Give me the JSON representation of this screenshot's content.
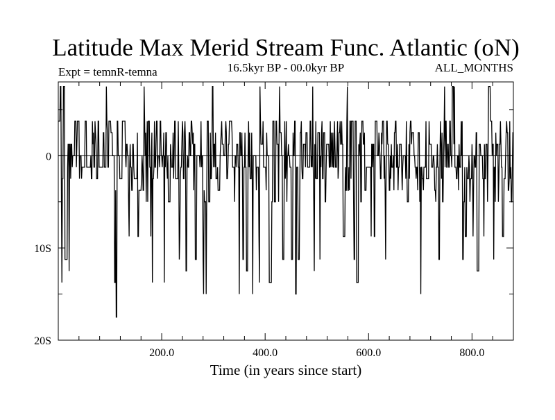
{
  "chart_data": {
    "type": "line",
    "title": "Latitude Max Merid Stream Func. Atlantic (oN)",
    "subtitle_left": "Expt = temnR-temna",
    "subtitle_center": "16.5kyr BP - 00.0kyr BP",
    "subtitle_right": "ALL_MONTHS",
    "xlabel": "Time (in years since start)",
    "ylabel": "",
    "xlim": [
      0,
      880
    ],
    "ylim": [
      -20,
      8
    ],
    "x_ticks": [
      {
        "value": 200,
        "label": "200.0"
      },
      {
        "value": 400,
        "label": "400.0"
      },
      {
        "value": 600,
        "label": "600.0"
      },
      {
        "value": 800,
        "label": "800.0"
      }
    ],
    "y_ticks": [
      {
        "value": 0,
        "label": "0"
      },
      {
        "value": -10,
        "label": "10S"
      },
      {
        "value": -20,
        "label": "20S"
      }
    ],
    "reference_line": 0,
    "grid": false,
    "series_seed": 20250,
    "series_step": 1,
    "series_levels": [
      7.5,
      3.75,
      2.5,
      1.25,
      0,
      -1.25,
      -2.5,
      -3.75,
      -5,
      -8.75,
      -11.25,
      -12.5,
      -13.75,
      -15
    ],
    "series_level_weights": [
      0.02,
      0.14,
      0.08,
      0.12,
      0.16,
      0.22,
      0.1,
      0.04,
      0.03,
      0.03,
      0.03,
      0.01,
      0.01,
      0.01
    ],
    "series_extremes": [
      {
        "x": 112,
        "y": -17.5
      },
      {
        "x": 286,
        "y": -15
      },
      {
        "x": 350,
        "y": -15
      },
      {
        "x": 459,
        "y": -15
      },
      {
        "x": 4,
        "y": 7.5
      },
      {
        "x": 10,
        "y": 7.5
      },
      {
        "x": 298,
        "y": 7.5
      },
      {
        "x": 492,
        "y": 7.5
      },
      {
        "x": 762,
        "y": 7.5
      }
    ],
    "series_name": "Latitude Max Merid Stream Func. Atlantic"
  }
}
